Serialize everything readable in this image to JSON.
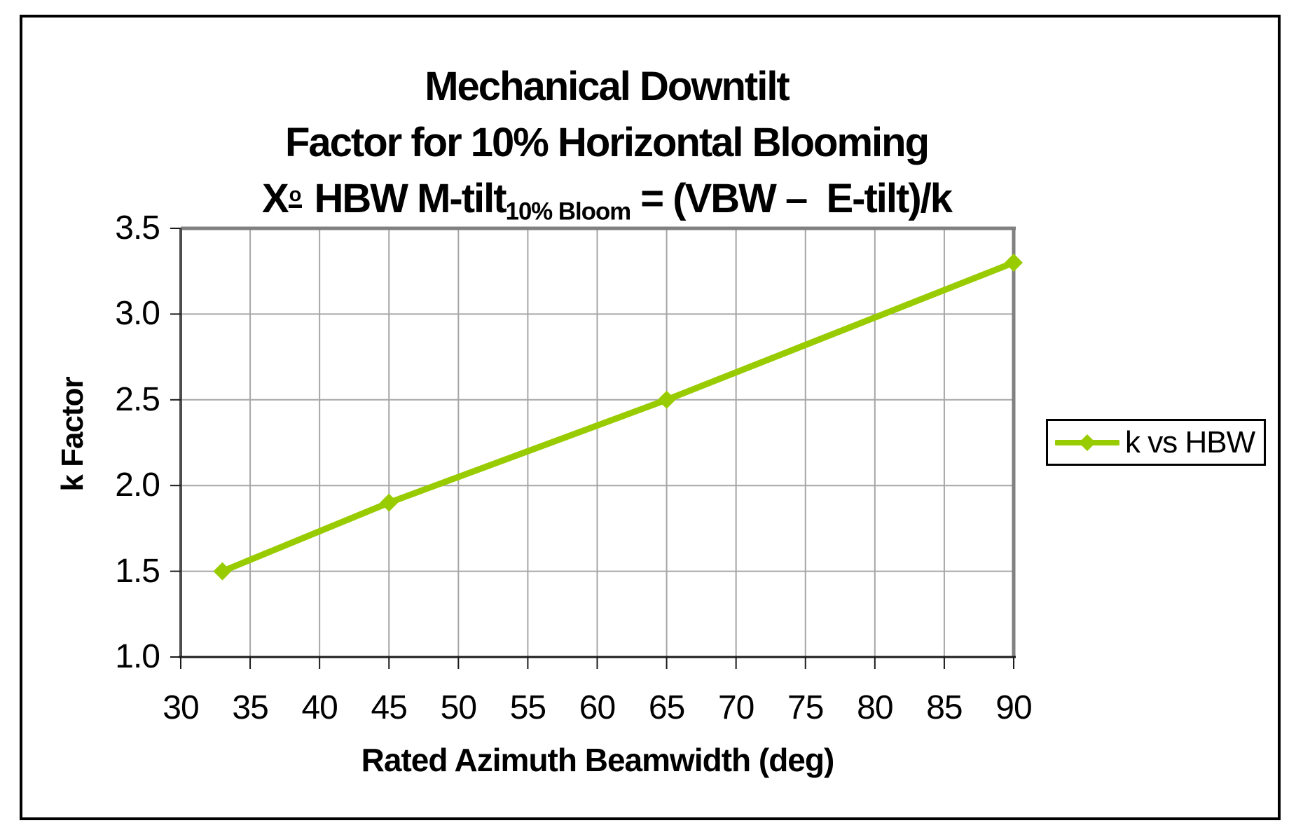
{
  "chart_data": {
    "type": "line",
    "title_lines": [
      "Mechanical Downtilt",
      "Factor for 10% Horizontal Blooming"
    ],
    "formula": {
      "x_term": "X",
      "ordinal": "o",
      "main": " HBW M-tilt",
      "subscript": "10% Bloom",
      "rhs": " = (VBW –  E-tilt)/k"
    },
    "xlabel": "Rated Azimuth Beamwidth (deg)",
    "ylabel": "k Factor",
    "xticks": [
      30,
      35,
      40,
      45,
      50,
      55,
      60,
      65,
      70,
      75,
      80,
      85,
      90
    ],
    "yticks": [
      1.0,
      1.5,
      2.0,
      2.5,
      3.0,
      3.5
    ],
    "xlim": [
      30,
      90
    ],
    "ylim": [
      1.0,
      3.5
    ],
    "grid": true,
    "legend": {
      "position": "right",
      "entries": [
        "k vs HBW"
      ]
    },
    "series": [
      {
        "name": "k vs HBW",
        "marker": "diamond",
        "color": "#99CC00",
        "points": [
          {
            "x": 33,
            "y": 1.5
          },
          {
            "x": 45,
            "y": 1.9
          },
          {
            "x": 65,
            "y": 2.5
          },
          {
            "x": 90,
            "y": 3.3
          }
        ]
      }
    ],
    "colors": {
      "series": "#99CC00",
      "gridline": "#A6A6A6",
      "plot_border": "#808080",
      "y_axis": "#4D4D4D",
      "x_axis": "#1A1A1A",
      "tick": "#1A1A1A",
      "text": "#000000",
      "background": "#FFFFFF",
      "chart_border": "#000000"
    }
  }
}
